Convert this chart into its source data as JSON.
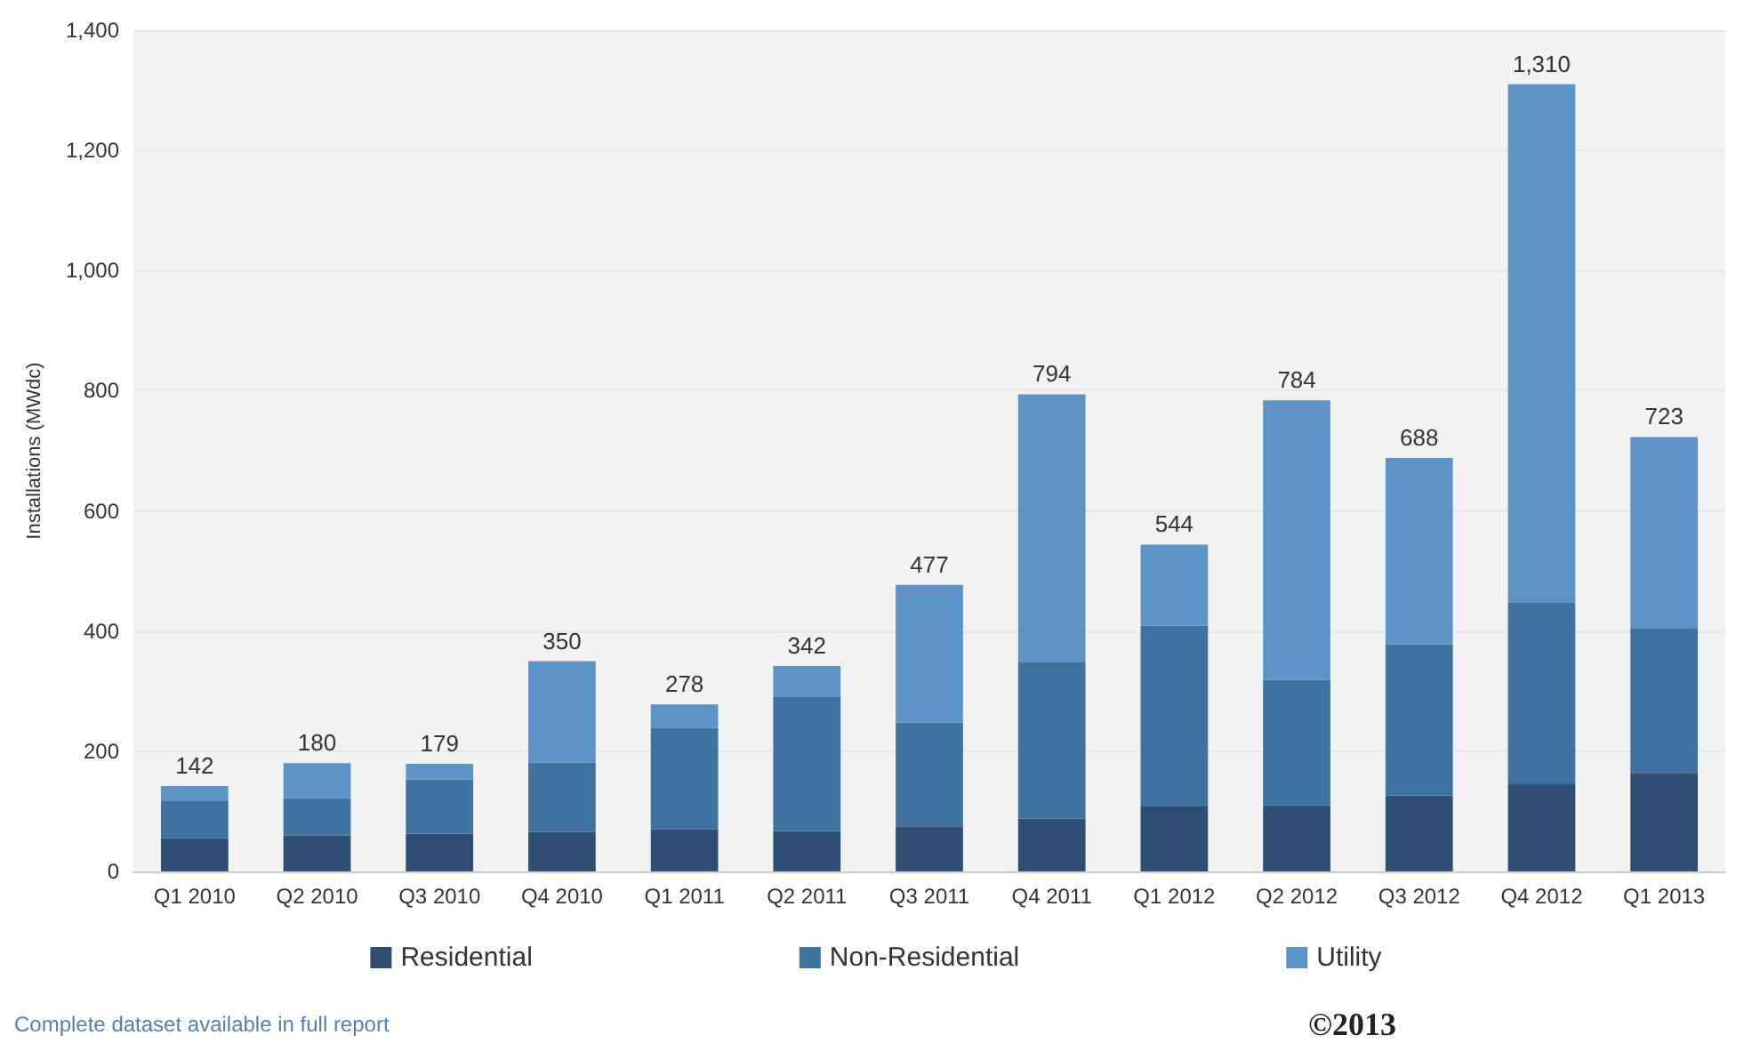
{
  "chart_data": {
    "type": "bar",
    "stacked": true,
    "ylabel": "Installations (MWdc)",
    "categories": [
      "Q1 2010",
      "Q2 2010",
      "Q3 2010",
      "Q4 2010",
      "Q1 2011",
      "Q2 2011",
      "Q3 2011",
      "Q4 2011",
      "Q1 2012",
      "Q2 2012",
      "Q3 2012",
      "Q4 2012",
      "Q1 2013"
    ],
    "series": [
      {
        "name": "Residential",
        "color": "#2e4e74",
        "values": [
          55,
          60,
          63,
          66,
          70,
          67,
          75,
          88,
          108,
          110,
          126,
          145,
          164
        ]
      },
      {
        "name": "Non-Residential",
        "color": "#40729f",
        "values": [
          63,
          62,
          90,
          115,
          169,
          223,
          173,
          261,
          301,
          209,
          252,
          302,
          240
        ]
      },
      {
        "name": "Utility",
        "color": "#5e93c8",
        "values": [
          24,
          58,
          26,
          169,
          39,
          52,
          229,
          445,
          135,
          465,
          310,
          863,
          319
        ]
      }
    ],
    "totals": [
      "142",
      "180",
      "179",
      "350",
      "278",
      "342",
      "477",
      "794",
      "544",
      "784",
      "688",
      "1,310",
      "723"
    ],
    "ylim": [
      0,
      1400
    ],
    "yticks": [
      0,
      200,
      400,
      600,
      800,
      {
        "value": 1000,
        "label": "1,000"
      },
      {
        "value": 1200,
        "label": "1,200"
      },
      {
        "value": 1400,
        "label": "1,400"
      }
    ],
    "grid": "y",
    "legend": "bottom",
    "annotations": [
      "Complete dataset available in full report",
      "©2013"
    ]
  }
}
